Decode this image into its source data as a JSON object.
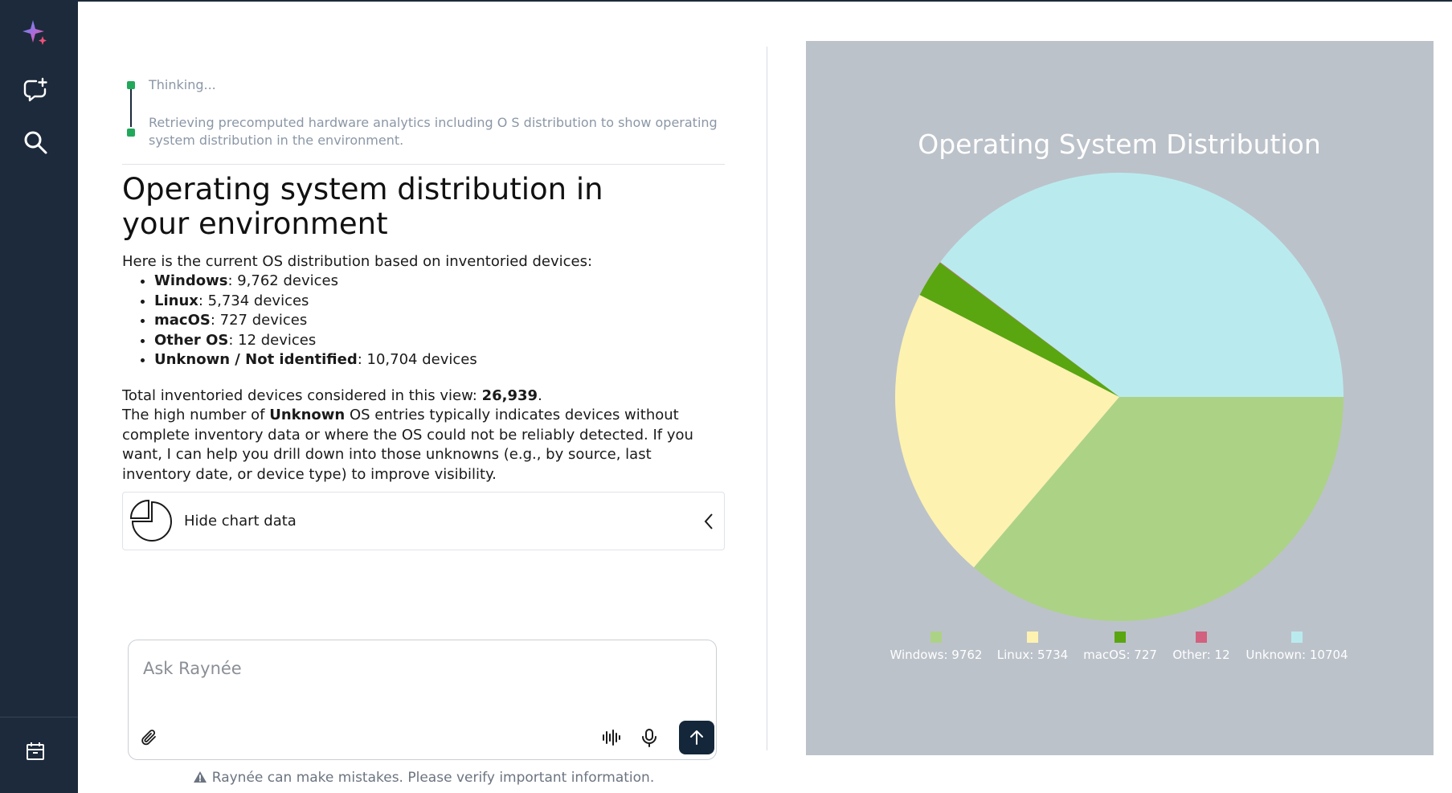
{
  "sidebar": {
    "items": [
      {
        "name": "sparkle-logo-icon"
      },
      {
        "name": "new-chat-icon"
      },
      {
        "name": "search-icon"
      },
      {
        "name": "calendar-icon"
      }
    ]
  },
  "thinking": {
    "step1": "Thinking...",
    "step2_line1": "Retrieving precomputed hardware analytics including O S distribution to show operating",
    "step2_line2": "system distribution in the environment."
  },
  "answer": {
    "title": "Operating system distribution in your environment",
    "intro": "Here is the current OS distribution based on inventoried devices:",
    "items": [
      {
        "label": "Windows",
        "rest": ": 9,762 devices"
      },
      {
        "label": "Linux",
        "rest": ": 5,734 devices"
      },
      {
        "label": "macOS",
        "rest": ": 727 devices"
      },
      {
        "label": "Other OS",
        "rest": ": 12 devices"
      },
      {
        "label": "Unknown / Not identified",
        "rest": ": 10,704 devices"
      }
    ],
    "total_prefix": "Total inventoried devices considered in this view: ",
    "total_value": "26,939",
    "total_suffix": ".",
    "para_prefix": "The high number of ",
    "para_bold": "Unknown",
    "para_rest": " OS entries typically indicates devices without complete inventory data or where the OS could not be reliably detected. If you want, I can help you drill down into those unknowns (e.g., by source, last inventory date, or device type) to improve visibility."
  },
  "chart_toggle": {
    "label": "Hide chart data"
  },
  "composer": {
    "placeholder": "Ask Raynée"
  },
  "disclaimer": "Raynée can make mistakes. Please verify important information.",
  "chart_data": {
    "type": "pie",
    "title": "Operating System Distribution",
    "categories": [
      "Windows",
      "Linux",
      "macOS",
      "Other",
      "Unknown"
    ],
    "values": [
      9762,
      5734,
      727,
      12,
      10704
    ],
    "legend_labels": [
      "Windows: 9762",
      "Linux: 5734",
      "macOS: 727",
      "Other: 12",
      "Unknown: 10704"
    ],
    "colors": [
      "#acd286",
      "#fdf2b0",
      "#5aa610",
      "#d1617e",
      "#b9ebee"
    ],
    "background": "#bcc2ca",
    "legend_position": "bottom"
  }
}
